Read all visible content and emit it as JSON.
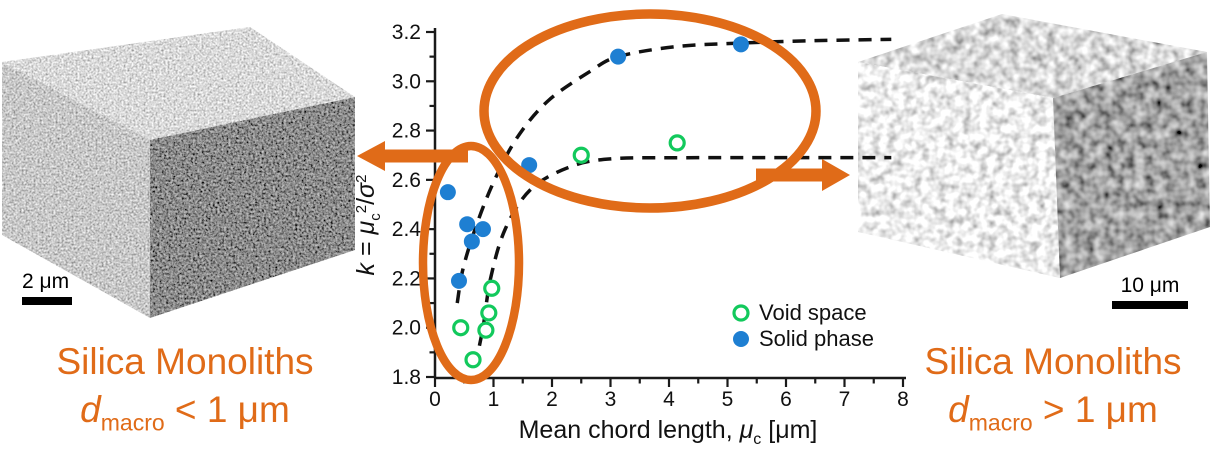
{
  "colors": {
    "accent_orange": "#E06B18",
    "solid_blue": "#1E7FD2",
    "void_green": "#12C95C",
    "axis_black": "#111111"
  },
  "left_panel": {
    "scale_bar_label": "2 μm",
    "caption_line1": "Silica Monoliths",
    "caption_var": "d",
    "caption_sub": "macro",
    "caption_rest": " < 1 μm"
  },
  "right_panel": {
    "scale_bar_label": "10 μm",
    "caption_line1": "Silica Monoliths",
    "caption_var": "d",
    "caption_sub": "macro",
    "caption_rest": " > 1 μm"
  },
  "chart_data": {
    "type": "scatter",
    "title": "",
    "xlabel": "Mean chord length, μc [μm]",
    "ylabel": "k = μc²/σ²",
    "xlabel_parts": {
      "prefix": "Mean chord length, ",
      "mu": "μ",
      "sub": "c",
      "suffix": " [μm]"
    },
    "ylabel_parts": {
      "k": "k",
      "eq": " = ",
      "mu": "μ",
      "sub": "c",
      "sup": "2",
      "slash": "/",
      "sigma": "σ",
      "sup2": "2"
    },
    "xlim": [
      0,
      8
    ],
    "ylim": [
      1.8,
      3.2
    ],
    "x_ticks": [
      0,
      1,
      2,
      3,
      4,
      5,
      6,
      7,
      8
    ],
    "y_ticks": [
      1.8,
      2.0,
      2.2,
      2.4,
      2.6,
      2.8,
      3.0,
      3.2
    ],
    "grid": false,
    "legend_position": "lower right",
    "legend": [
      {
        "label": "Void space",
        "marker": "open-circle",
        "color": "#12C95C"
      },
      {
        "label": "Solid phase",
        "marker": "filled-circle",
        "color": "#1E7FD2"
      }
    ],
    "series": [
      {
        "name": "Void space",
        "style": "open",
        "color": "#12C95C",
        "points": [
          [
            0.97,
            2.16
          ],
          [
            0.92,
            2.06
          ],
          [
            0.44,
            2.0
          ],
          [
            0.87,
            1.99
          ],
          [
            0.65,
            1.87
          ],
          [
            2.5,
            2.7
          ],
          [
            4.14,
            2.75
          ]
        ]
      },
      {
        "name": "Solid phase",
        "style": "filled",
        "color": "#1E7FD2",
        "points": [
          [
            0.22,
            2.55
          ],
          [
            0.55,
            2.42
          ],
          [
            0.82,
            2.4
          ],
          [
            0.63,
            2.35
          ],
          [
            0.41,
            2.19
          ],
          [
            1.61,
            2.66
          ],
          [
            3.13,
            3.1
          ],
          [
            5.23,
            3.15
          ]
        ]
      }
    ],
    "trend_curves": [
      {
        "name": "Solid phase trend",
        "style": "dashed",
        "points": [
          [
            0.38,
            2.1
          ],
          [
            0.48,
            2.24
          ],
          [
            0.7,
            2.41
          ],
          [
            1.0,
            2.59
          ],
          [
            1.4,
            2.77
          ],
          [
            1.93,
            2.92
          ],
          [
            2.65,
            3.04
          ],
          [
            3.13,
            3.1
          ],
          [
            4.1,
            3.14
          ],
          [
            5.2,
            3.155
          ],
          [
            6.5,
            3.165
          ],
          [
            7.8,
            3.17
          ]
        ]
      },
      {
        "name": "Void space trend",
        "style": "dashed",
        "points": [
          [
            0.68,
            1.84
          ],
          [
            0.82,
            2.0
          ],
          [
            0.95,
            2.2
          ],
          [
            1.2,
            2.4
          ],
          [
            1.63,
            2.56
          ],
          [
            2.28,
            2.65
          ],
          [
            3.0,
            2.685
          ],
          [
            4.5,
            2.69
          ],
          [
            7.8,
            2.69
          ]
        ]
      }
    ]
  }
}
